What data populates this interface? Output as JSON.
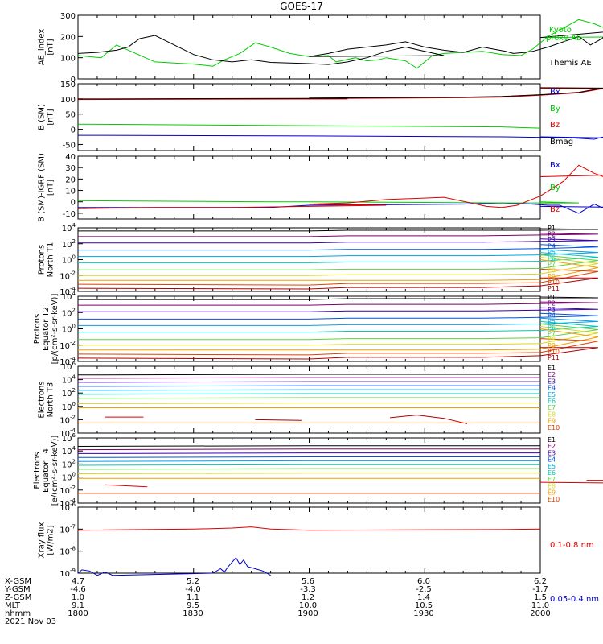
{
  "title": "GOES-17",
  "date_label": "2021 Nov 03",
  "footer": {
    "row_labels": [
      "X-GSM",
      "Y-GSM",
      "Z-GSM",
      "MLT",
      "hhmm"
    ],
    "columns": [
      [
        "4.7",
        "-4.6",
        "1.0",
        "9.1",
        "1800"
      ],
      [
        "5.2",
        "-4.0",
        "1.1",
        "9.5",
        "1830"
      ],
      [
        "5.6",
        "-3.3",
        "1.2",
        "10.0",
        "1900"
      ],
      [
        "6.0",
        "-2.5",
        "1.4",
        "10.5",
        "1930"
      ],
      [
        "6.2",
        "-1.7",
        "1.5",
        "11.0",
        "2000"
      ]
    ]
  },
  "colors": {
    "black": "#000000",
    "green": "#00cc00",
    "red": "#dd0000",
    "blue": "#0000cc",
    "proton_channels": [
      "#000000",
      "#7a006e",
      "#3a00a8",
      "#0050e0",
      "#00a0e6",
      "#00c8b4",
      "#60d040",
      "#d8d820",
      "#f0a000",
      "#e04000",
      "#b00000"
    ],
    "electron_channels": [
      "#000000",
      "#7a006e",
      "#3a00a8",
      "#0050e0",
      "#00a0e6",
      "#00c8b4",
      "#60d040",
      "#d8d820",
      "#f0a000",
      "#e04000",
      "#b00000"
    ]
  },
  "chart_data": [
    {
      "type": "line",
      "ylabel": "AE_index [nT]",
      "ylim": [
        0,
        300
      ],
      "yticks": [
        "0",
        "100",
        "200",
        "300"
      ],
      "series": [
        {
          "name": "Kyoto proxy AE",
          "color": "#00cc00",
          "x": [
            1800,
            1806,
            1810,
            1815,
            1820,
            1825,
            1830,
            1835,
            1838,
            1842,
            1846,
            1850,
            1855,
            1900,
            1905,
            1907,
            1912,
            1915,
            1918,
            1920,
            1925,
            1928,
            1932,
            1935,
            1940,
            1945,
            1950,
            1955,
            1958,
            1962,
            1966,
            1970,
            1974,
            1978,
            1982,
            1985,
            1990,
            1995,
            2000
          ],
          "y": [
            110,
            100,
            160,
            120,
            80,
            75,
            70,
            60,
            90,
            120,
            170,
            150,
            120,
            105,
            110,
            80,
            100,
            85,
            90,
            100,
            85,
            50,
            110,
            120,
            125,
            130,
            115,
            110,
            140,
            200,
            240,
            280,
            260,
            230,
            210,
            210,
            190,
            200,
            195
          ]
        },
        {
          "name": "Themis AE",
          "color": "#000000",
          "x": [
            1800,
            1805,
            1810,
            1813,
            1816,
            1820,
            1825,
            1830,
            1835,
            1840,
            1845,
            1850,
            1855,
            1860,
            1865,
            1870,
            1875,
            1880,
            1885,
            1890,
            1895,
            1900,
            1905,
            1910,
            1915,
            1920,
            1925,
            1930,
            1935,
            1940,
            1945,
            1948,
            1951,
            1953,
            1956,
            1958,
            1962,
            1966,
            1970,
            1973,
            1976,
            1979,
            1982,
            1985,
            1988,
            1990,
            1995,
            2000
          ],
          "y": [
            120,
            125,
            135,
            150,
            190,
            205,
            160,
            115,
            90,
            80,
            90,
            78,
            75,
            72,
            68,
            80,
            100,
            130,
            150,
            130,
            110,
            105,
            120,
            140,
            150,
            160,
            175,
            150,
            135,
            125,
            150,
            140,
            130,
            120,
            125,
            130,
            150,
            175,
            200,
            160,
            190,
            250,
            210,
            200,
            270,
            300,
            250,
            195
          ]
        }
      ]
    },
    {
      "type": "line",
      "ylabel": "B (SM) [nT]",
      "ylim": [
        -70,
        150
      ],
      "yticks": [
        "-50",
        "0",
        "50",
        "100",
        "150"
      ],
      "series": [
        {
          "name": "Bx",
          "color": "#0000cc",
          "x": [
            1800,
            1900,
            1950,
            1968,
            1974,
            1978,
            1984,
            2000
          ],
          "y": [
            -20,
            -22,
            -25,
            -28,
            -33,
            -20,
            -30,
            -25
          ]
        },
        {
          "name": "By",
          "color": "#00cc00",
          "x": [
            1800,
            1900,
            1950,
            2000
          ],
          "y": [
            17,
            12,
            8,
            4
          ]
        },
        {
          "name": "Bz",
          "color": "#dd0000",
          "x": [
            1800,
            1870,
            1900,
            1940,
            1950,
            1960,
            1970,
            1978,
            1985,
            1990,
            2000
          ],
          "y": [
            98,
            100,
            101,
            104,
            106,
            112,
            120,
            138,
            130,
            133,
            135
          ]
        },
        {
          "name": "Bmag",
          "color": "#000000",
          "x": [
            1800,
            1870,
            1900,
            1940,
            1950,
            1960,
            1970,
            1978,
            1985,
            1990,
            2000
          ],
          "y": [
            100,
            102,
            103,
            106,
            108,
            114,
            122,
            140,
            132,
            135,
            137
          ]
        }
      ]
    },
    {
      "type": "line",
      "ylabel": "B (SM)-IGRF (SM) [nT]",
      "ylim": [
        -15,
        40
      ],
      "yticks": [
        "-10",
        "0",
        "10",
        "20",
        "30",
        "40"
      ],
      "series": [
        {
          "name": "Bx",
          "color": "#0000cc",
          "x": [
            1800,
            1850,
            1900,
            1940,
            1950,
            1958,
            1962,
            1965,
            1970,
            1974,
            1978,
            1982,
            1988,
            2000
          ],
          "y": [
            -5,
            -5,
            -3,
            -2,
            -1,
            -2,
            -3,
            -3,
            -10,
            -2,
            -8,
            -3,
            -5,
            -4
          ]
        },
        {
          "name": "By",
          "color": "#00cc00",
          "x": [
            1800,
            1850,
            1900,
            1950,
            1970,
            2000
          ],
          "y": [
            1,
            0,
            0,
            -1,
            -1,
            0
          ]
        },
        {
          "name": "Bz",
          "color": "#dd0000",
          "x": [
            1800,
            1820,
            1840,
            1860,
            1880,
            1900,
            1910,
            1920,
            1935,
            1942,
            1946,
            1950,
            1954,
            1960,
            1966,
            1970,
            1974,
            1978,
            1984,
            1990,
            1996,
            2000
          ],
          "y": [
            -6,
            -5,
            -5,
            -4,
            -3,
            -2,
            -1,
            2,
            4,
            -1,
            -4,
            -5,
            -3,
            5,
            18,
            32,
            25,
            20,
            25,
            22,
            25,
            22
          ]
        }
      ]
    },
    {
      "type": "line",
      "ylabel": "Protons North T1",
      "yscale": "log",
      "ylim": [
        -4,
        4
      ],
      "yticks_exp": [
        "-4",
        "-2",
        "0",
        "2",
        "4"
      ],
      "series_names": [
        "P1",
        "P2",
        "P3",
        "P4",
        "P5",
        "P6",
        "P7",
        "P8",
        "P9",
        "P10",
        "P11"
      ],
      "x": [
        1800,
        1860,
        1910,
        1945,
        1960,
        1975,
        2000
      ],
      "series_log": [
        [
          3.6,
          3.6,
          3.7,
          3.7,
          3.7,
          3.8,
          3.9
        ],
        [
          2.9,
          2.9,
          3.0,
          3.0,
          3.1,
          3.2,
          3.3
        ],
        [
          2.1,
          2.1,
          2.2,
          2.2,
          2.3,
          2.4,
          2.6
        ],
        [
          1.2,
          1.2,
          1.3,
          1.3,
          1.4,
          1.6,
          1.9
        ],
        [
          0.4,
          0.4,
          0.5,
          0.5,
          0.6,
          0.9,
          1.3
        ],
        [
          -0.4,
          -0.4,
          -0.3,
          -0.3,
          -0.2,
          0.3,
          0.9
        ],
        [
          -1.3,
          -1.3,
          -1.2,
          -1.2,
          -1.1,
          -0.1,
          0.6
        ],
        [
          -2.0,
          -2.0,
          -1.9,
          -1.9,
          -1.8,
          -0.5,
          0.3
        ],
        [
          -2.6,
          -2.6,
          -2.6,
          -2.6,
          -2.5,
          -1.0,
          0.0
        ],
        [
          -3.1,
          -3.2,
          -3.0,
          -3.0,
          -2.9,
          -1.5,
          -1.2
        ],
        [
          -3.6,
          -3.7,
          -3.5,
          -3.5,
          -3.3,
          -2.3,
          -2.3
        ]
      ]
    },
    {
      "type": "line",
      "ylabel": "Protons Equator T2 [p/(cm²-s-sr-keV)]",
      "yscale": "log",
      "ylim": [
        -4,
        4
      ],
      "yticks_exp": [
        "-4",
        "-2",
        "0",
        "2",
        "4"
      ],
      "series_names": [
        "P1",
        "P2",
        "P3",
        "P4",
        "P5",
        "P6",
        "P7",
        "P8",
        "P9",
        "P10",
        "P11"
      ],
      "x": [
        1800,
        1860,
        1910,
        1945,
        1960,
        1975,
        2000
      ],
      "series_log": [
        [
          3.6,
          3.6,
          3.7,
          3.7,
          3.7,
          3.8,
          3.9
        ],
        [
          2.9,
          2.9,
          3.0,
          3.0,
          3.1,
          3.2,
          3.3
        ],
        [
          2.1,
          2.1,
          2.2,
          2.2,
          2.3,
          2.4,
          2.6
        ],
        [
          1.2,
          1.2,
          1.3,
          1.3,
          1.4,
          1.6,
          1.9
        ],
        [
          0.4,
          0.4,
          0.5,
          0.5,
          0.6,
          0.9,
          1.3
        ],
        [
          -0.4,
          -0.4,
          -0.3,
          -0.3,
          -0.2,
          0.3,
          0.9
        ],
        [
          -1.3,
          -1.3,
          -1.2,
          -1.2,
          -1.1,
          -0.1,
          0.6
        ],
        [
          -2.0,
          -2.0,
          -1.9,
          -1.9,
          -1.8,
          -0.5,
          0.3
        ],
        [
          -2.6,
          -2.6,
          -2.6,
          -2.6,
          -2.5,
          -1.0,
          0.0
        ],
        [
          -3.1,
          -3.2,
          -3.0,
          -3.0,
          -2.9,
          -1.5,
          -1.2
        ],
        [
          -3.6,
          -3.7,
          -3.5,
          -3.5,
          -3.3,
          -2.3,
          -2.3
        ]
      ]
    },
    {
      "type": "line",
      "ylabel": "Electrons North T3",
      "yscale": "log",
      "ylim": [
        -4,
        6
      ],
      "yticks_exp": [
        "-4",
        "-2",
        "0",
        "2",
        "4",
        "6"
      ],
      "series_names": [
        "E1",
        "E2",
        "E3",
        "E4",
        "E5",
        "E6",
        "E7",
        "E8",
        "E9",
        "E10"
      ],
      "x": [
        1800,
        1900,
        2000
      ],
      "series_log": [
        [
          4.7,
          4.8,
          4.8
        ],
        [
          4.2,
          4.3,
          4.3
        ],
        [
          3.6,
          3.7,
          3.7
        ],
        [
          3.0,
          3.1,
          3.1
        ],
        [
          2.4,
          2.5,
          2.5
        ],
        [
          1.8,
          1.9,
          1.9
        ],
        [
          1.2,
          1.3,
          1.3
        ],
        [
          0.4,
          0.5,
          0.5
        ],
        [
          -0.2,
          -0.2,
          -0.2
        ],
        [
          -2.5,
          -2.5,
          -2.5
        ]
      ],
      "fragments": [
        {
          "color": "#dd0000",
          "x": [
            1807,
            1817
          ],
          "y": [
            -1.6,
            -1.6
          ]
        },
        {
          "color": "#b00000",
          "x": [
            1846,
            1858
          ],
          "y": [
            -2.0,
            -2.1
          ]
        },
        {
          "color": "#b00000",
          "x": [
            1921,
            1928,
            1935,
            1941
          ],
          "y": [
            -1.7,
            -1.3,
            -1.8,
            -2.6
          ]
        }
      ]
    },
    {
      "type": "line",
      "ylabel": "Electrons Equator T4 [e/(cm²-s-sr-keV)]",
      "yscale": "log",
      "ylim": [
        -4,
        6
      ],
      "yticks_exp": [
        "-4",
        "-2",
        "0",
        "2",
        "4",
        "6"
      ],
      "series_names": [
        "E1",
        "E2",
        "E3",
        "E4",
        "E5",
        "E6",
        "E7",
        "E8",
        "E9",
        "E10"
      ],
      "x": [
        1800,
        1900,
        2000
      ],
      "series_log": [
        [
          4.7,
          4.8,
          4.8
        ],
        [
          4.2,
          4.3,
          4.3
        ],
        [
          3.6,
          3.7,
          3.7
        ],
        [
          3.0,
          3.1,
          3.1
        ],
        [
          2.4,
          2.5,
          2.5
        ],
        [
          1.8,
          1.9,
          1.9
        ],
        [
          1.2,
          1.3,
          1.3
        ],
        [
          0.5,
          0.6,
          0.6
        ],
        [
          -0.2,
          -0.2,
          -0.2
        ],
        [
          -2.5,
          -2.5,
          -2.5
        ]
      ],
      "fragments": [
        {
          "color": "#dd0000",
          "x": [
            1807,
            1818
          ],
          "y": [
            -1.2,
            -1.5
          ]
        },
        {
          "color": "#dd0000",
          "x": [
            1972,
            1985
          ],
          "y": [
            -0.5,
            -0.5
          ]
        },
        {
          "color": "#dd0000",
          "x": [
            1993,
            2000
          ],
          "y": [
            -1.0,
            -0.8
          ]
        }
      ]
    },
    {
      "type": "line",
      "ylabel": "Xray flux [W/m2]",
      "yscale": "log",
      "ylim": [
        -9,
        -6
      ],
      "yticks_exp": [
        "-9",
        "-8",
        "-7",
        "-6"
      ],
      "series": [
        {
          "name": "0.1-0.8 nm",
          "color": "#dd0000",
          "x": [
            1800,
            1830,
            1840,
            1845,
            1850,
            1860,
            1900,
            1950,
            2000
          ],
          "y": [
            -7.05,
            -7.0,
            -6.95,
            -6.9,
            -7.0,
            -7.05,
            -7.05,
            -7.02,
            -7.0
          ]
        },
        {
          "name": "0.05-0.4 nm",
          "color": "#0000cc",
          "x": [
            1800,
            1801,
            1803,
            1805,
            1807,
            1809,
            1835,
            1837,
            1838,
            1839,
            1840,
            1841,
            1842,
            1843,
            1844,
            1846,
            1848,
            1850
          ],
          "y": [
            -9.0,
            -8.85,
            -8.9,
            -9.1,
            -8.95,
            -9.1,
            -9.0,
            -8.8,
            -8.95,
            -8.7,
            -8.5,
            -8.3,
            -8.6,
            -8.4,
            -8.7,
            -8.8,
            -8.9,
            -9.1
          ]
        }
      ]
    }
  ],
  "annotations": {
    "ae_kyoto": [
      "Kyoto",
      "proxy AE"
    ],
    "ae_themis": "Themis AE",
    "b_labels": [
      "Bx",
      "By",
      "Bz",
      "Bmag"
    ],
    "db_labels": [
      "Bx",
      "By",
      "Bz"
    ],
    "p_labels": [
      "P1",
      "P2",
      "P3",
      "P4",
      "P5",
      "P6",
      "P7",
      "P8",
      "P9",
      "P10",
      "P11"
    ],
    "e_labels": [
      "E1",
      "E2",
      "E3",
      "E4",
      "E5",
      "E6",
      "E7",
      "E8",
      "E9",
      "E10"
    ],
    "xray_labels": [
      "0.1-0.8 nm",
      "0.05-0.4 nm"
    ],
    "ylabels": [
      [
        "AE_index",
        "[nT]"
      ],
      [
        "B (SM)",
        "[nT]"
      ],
      [
        "B (SM)-IGRF (SM)",
        "[nT]"
      ],
      [
        "Protons",
        "North T1"
      ],
      [
        "Protons",
        "Equator T2",
        "[p/(cm²-s-sr-keV)]"
      ],
      [
        "Electrons",
        "North T3"
      ],
      [
        "Electrons",
        "Equator T4",
        "[e/(cm²-s-sr-keV)]"
      ],
      [
        "Xray flux",
        "[W/m2]"
      ]
    ]
  }
}
